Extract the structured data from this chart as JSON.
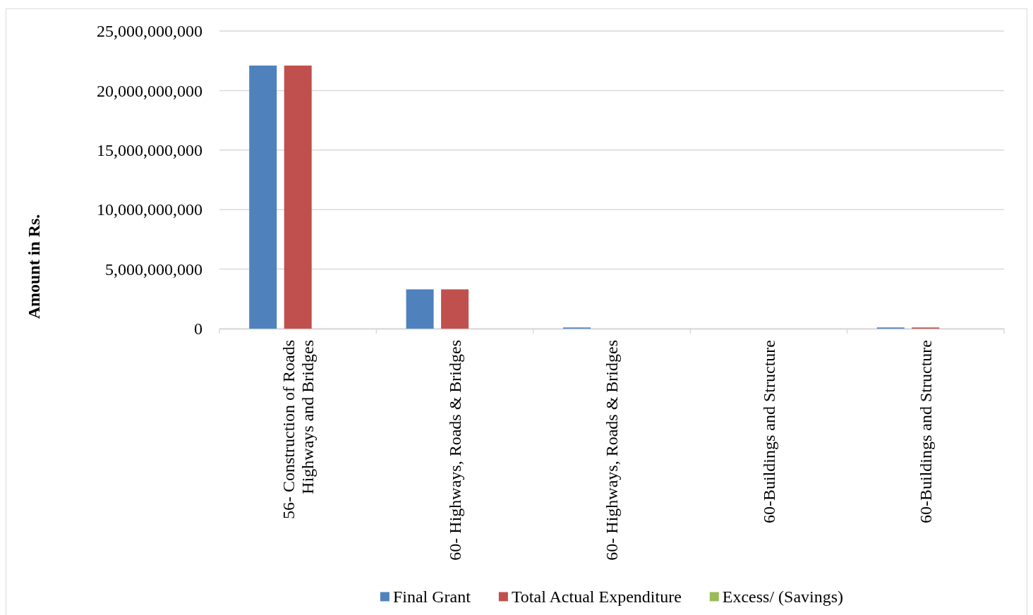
{
  "chart_data": {
    "type": "bar",
    "categories": [
      "56- Construction of Roads Highways and Bridges",
      "60- Highways, Roads & Bridges",
      "60- Highways, Roads & Bridges",
      "60-Buildings and Structure",
      "60-Buildings and Structure"
    ],
    "series": [
      {
        "name": "Final Grant",
        "color": "#4f81bd",
        "values": [
          22100000000,
          3300000000,
          100000000,
          0,
          100000000
        ]
      },
      {
        "name": "Total Actual Expenditure",
        "color": "#c0504d",
        "values": [
          22100000000,
          3300000000,
          0,
          0,
          100000000
        ]
      },
      {
        "name": "Excess/ (Savings)",
        "color": "#9bbb59",
        "values": [
          0,
          0,
          0,
          0,
          0
        ]
      }
    ],
    "ylabel": "Amount in Rs.",
    "ylim": [
      0,
      25000000000
    ],
    "yticks": [
      {
        "value": 0,
        "label": "0"
      },
      {
        "value": 5000000000,
        "label": "5,000,000,000"
      },
      {
        "value": 10000000000,
        "label": "10,000,000,000"
      },
      {
        "value": 15000000000,
        "label": "15,000,000,000"
      },
      {
        "value": 20000000000,
        "label": "20,000,000,000"
      },
      {
        "value": 25000000000,
        "label": "25,000,000,000"
      }
    ],
    "grid": "y",
    "legend": "bottom"
  }
}
